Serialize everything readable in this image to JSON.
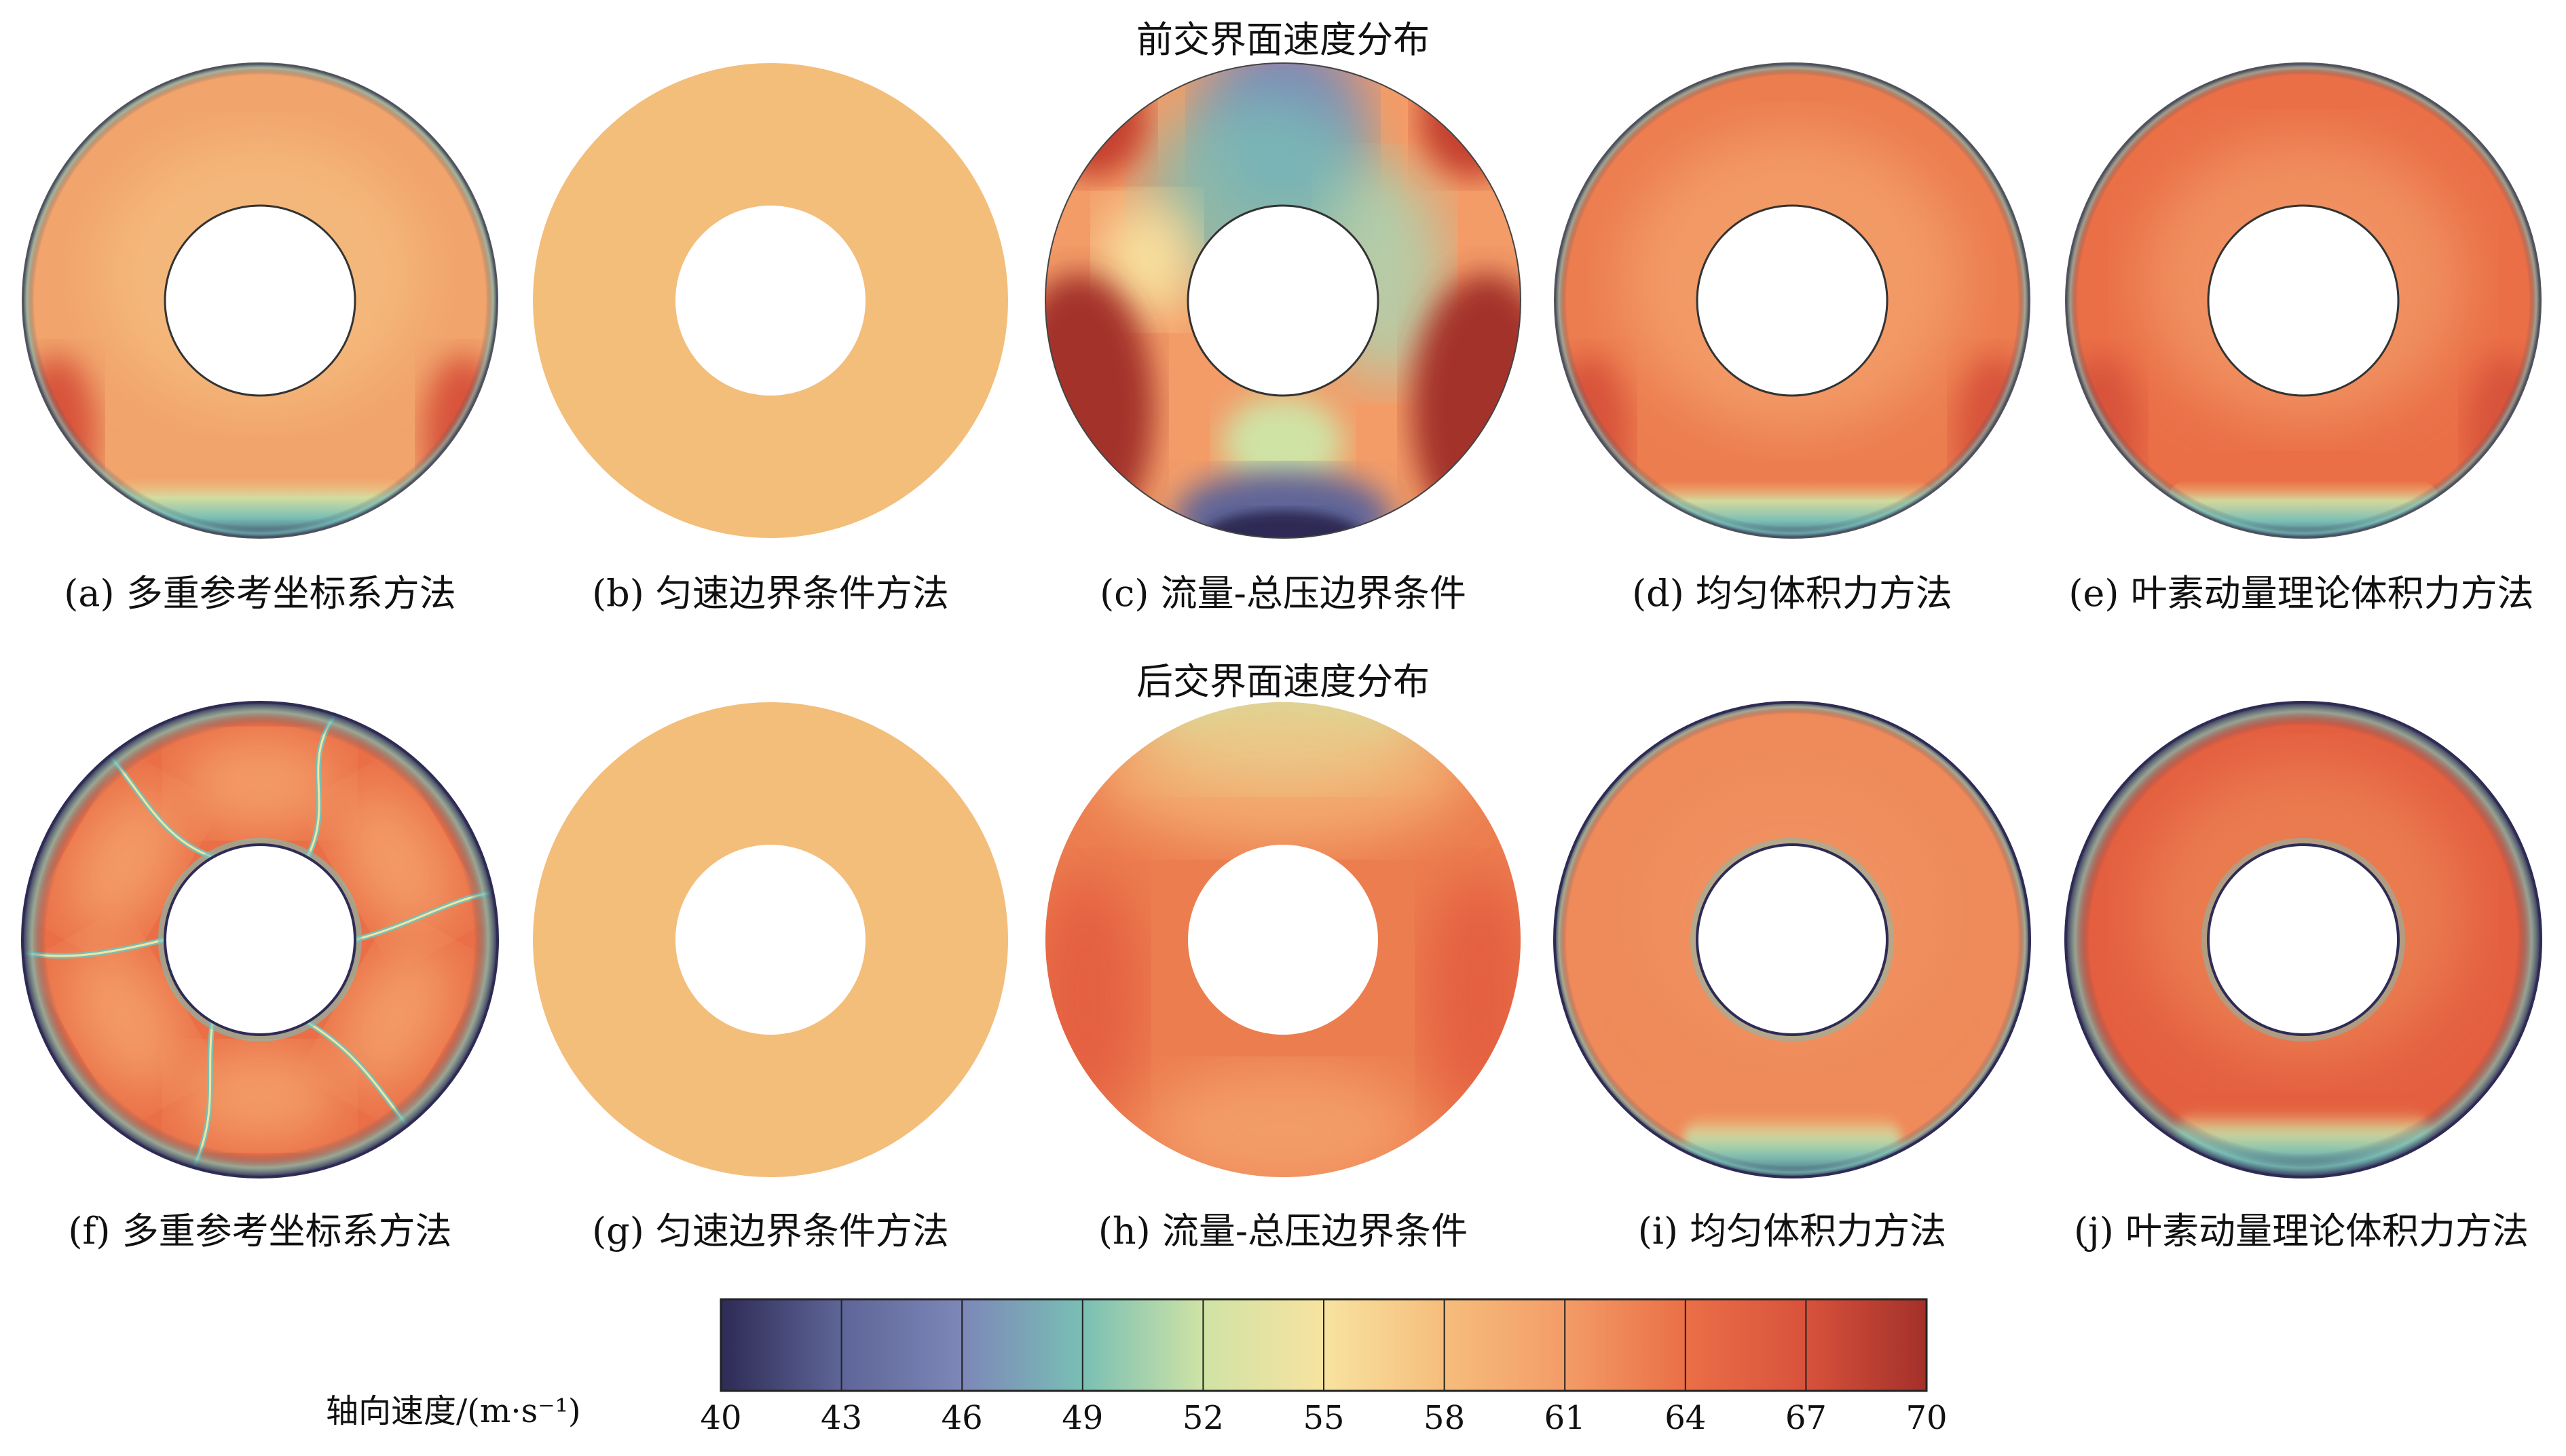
{
  "titles": {
    "front": "前交界面速度分布",
    "rear": "后交界面速度分布"
  },
  "panels": {
    "front": [
      {
        "label": "(a) 多重参考坐标系方法"
      },
      {
        "label": "(b) 匀速边界条件方法"
      },
      {
        "label": "(c) 流量-总压边界条件"
      },
      {
        "label": "(d) 均匀体积力方法"
      },
      {
        "label": "(e) 叶素动量理论体积力方法"
      }
    ],
    "rear": [
      {
        "label": "(f) 多重参考坐标系方法"
      },
      {
        "label": "(g) 匀速边界条件方法"
      },
      {
        "label": "(h) 流量-总压边界条件"
      },
      {
        "label": "(i) 均匀体积力方法"
      },
      {
        "label": "(j) 叶素动量理论体积力方法"
      }
    ]
  },
  "colorbar": {
    "title": "轴向速度/(m·s⁻¹)",
    "ticks": [
      "40",
      "43",
      "46",
      "49",
      "52",
      "55",
      "58",
      "61",
      "64",
      "67",
      "70"
    ],
    "colors": [
      "#2e2b55",
      "#5e6598",
      "#7d87b8",
      "#79bfb5",
      "#cfe3a5",
      "#f8e3a0",
      "#f6bd7c",
      "#f39c68",
      "#ea6f47",
      "#d8523b",
      "#a3302a"
    ],
    "value_min": 40,
    "value_max": 70
  },
  "fields": {
    "uniform_b": "#f3bd7a",
    "uniform_g": "#f3bd7a"
  }
}
